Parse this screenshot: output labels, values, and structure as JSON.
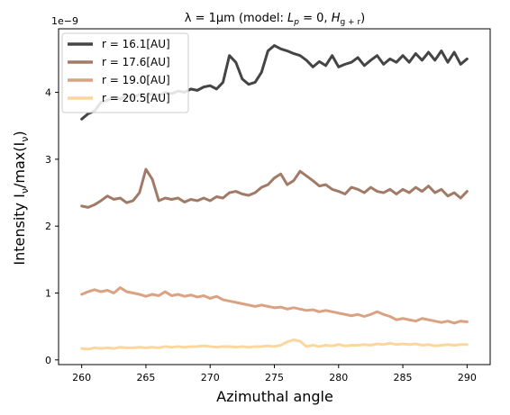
{
  "chart_data": {
    "type": "line",
    "title": "λ = 1μm (model: L_p = 0, H_g+r)",
    "title_parts": {
      "main": "λ = 1μm (model: ",
      "lp": "L",
      "lp_sub": "p",
      "lp_rest": " = 0, ",
      "h": "H",
      "h_sub": "g + r",
      "close": ")"
    },
    "xlabel": "Azimuthal angle",
    "ylabel_parts": {
      "a": "Intensity I",
      "a_sub": "ν",
      "b": "/max(I",
      "b_sub": "ν",
      "c": ")"
    },
    "offset_text": "1e−9",
    "xlim": [
      258.2,
      291.8
    ],
    "ylim": [
      -0.07,
      4.95
    ],
    "y_scale": 1e-09,
    "x_ticks": [
      260,
      265,
      270,
      275,
      280,
      285,
      290
    ],
    "y_ticks": [
      0,
      1,
      2,
      3,
      4
    ],
    "legend_position": "top-left",
    "series": [
      {
        "name": "r = 16.1[AU]",
        "color": "#454545",
        "x": [
          260.0,
          260.5,
          261.0,
          261.5,
          262.0,
          262.5,
          263.0,
          263.5,
          264.0,
          264.5,
          265.0,
          265.5,
          266.0,
          266.5,
          267.0,
          267.5,
          268.0,
          268.5,
          269.0,
          269.5,
          270.0,
          270.5,
          271.0,
          271.5,
          272.0,
          272.5,
          273.0,
          273.5,
          274.0,
          274.5,
          275.0,
          275.5,
          276.0,
          276.5,
          277.0,
          277.5,
          278.0,
          278.5,
          279.0,
          279.5,
          280.0,
          280.5,
          281.0,
          281.5,
          282.0,
          282.5,
          283.0,
          283.5,
          284.0,
          284.5,
          285.0,
          285.5,
          286.0,
          286.5,
          287.0,
          287.5,
          288.0,
          288.5,
          289.0,
          289.5,
          290.0
        ],
        "values": [
          3.6,
          3.68,
          3.72,
          3.85,
          3.88,
          3.93,
          3.9,
          3.95,
          3.92,
          3.97,
          3.93,
          3.98,
          3.95,
          4.0,
          3.98,
          4.02,
          4.0,
          4.05,
          4.03,
          4.08,
          4.1,
          4.05,
          4.15,
          4.55,
          4.45,
          4.2,
          4.12,
          4.15,
          4.3,
          4.62,
          4.7,
          4.65,
          4.62,
          4.58,
          4.55,
          4.48,
          4.38,
          4.46,
          4.4,
          4.55,
          4.38,
          4.42,
          4.45,
          4.52,
          4.4,
          4.48,
          4.55,
          4.42,
          4.5,
          4.45,
          4.55,
          4.45,
          4.58,
          4.48,
          4.6,
          4.48,
          4.62,
          4.45,
          4.6,
          4.42,
          4.5
        ]
      },
      {
        "name": "r = 17.6[AU]",
        "color": "#a17b68",
        "x": [
          260.0,
          260.5,
          261.0,
          261.5,
          262.0,
          262.5,
          263.0,
          263.5,
          264.0,
          264.5,
          265.0,
          265.5,
          266.0,
          266.5,
          267.0,
          267.5,
          268.0,
          268.5,
          269.0,
          269.5,
          270.0,
          270.5,
          271.0,
          271.5,
          272.0,
          272.5,
          273.0,
          273.5,
          274.0,
          274.5,
          275.0,
          275.5,
          276.0,
          276.5,
          277.0,
          277.5,
          278.0,
          278.5,
          279.0,
          279.5,
          280.0,
          280.5,
          281.0,
          281.5,
          282.0,
          282.5,
          283.0,
          283.5,
          284.0,
          284.5,
          285.0,
          285.5,
          286.0,
          286.5,
          287.0,
          287.5,
          288.0,
          288.5,
          289.0,
          289.5,
          290.0
        ],
        "values": [
          2.3,
          2.28,
          2.32,
          2.38,
          2.45,
          2.4,
          2.42,
          2.35,
          2.38,
          2.5,
          2.85,
          2.7,
          2.38,
          2.42,
          2.4,
          2.42,
          2.36,
          2.4,
          2.38,
          2.42,
          2.38,
          2.44,
          2.42,
          2.5,
          2.52,
          2.48,
          2.46,
          2.5,
          2.58,
          2.62,
          2.72,
          2.78,
          2.62,
          2.68,
          2.82,
          2.75,
          2.68,
          2.6,
          2.62,
          2.55,
          2.52,
          2.48,
          2.58,
          2.55,
          2.5,
          2.58,
          2.52,
          2.5,
          2.55,
          2.48,
          2.55,
          2.5,
          2.58,
          2.52,
          2.6,
          2.5,
          2.55,
          2.45,
          2.5,
          2.42,
          2.52
        ]
      },
      {
        "name": "r = 19.0[AU]",
        "color": "#daa283",
        "x": [
          260.0,
          260.5,
          261.0,
          261.5,
          262.0,
          262.5,
          263.0,
          263.5,
          264.0,
          264.5,
          265.0,
          265.5,
          266.0,
          266.5,
          267.0,
          267.5,
          268.0,
          268.5,
          269.0,
          269.5,
          270.0,
          270.5,
          271.0,
          271.5,
          272.0,
          272.5,
          273.0,
          273.5,
          274.0,
          274.5,
          275.0,
          275.5,
          276.0,
          276.5,
          277.0,
          277.5,
          278.0,
          278.5,
          279.0,
          279.5,
          280.0,
          280.5,
          281.0,
          281.5,
          282.0,
          282.5,
          283.0,
          283.5,
          284.0,
          284.5,
          285.0,
          285.5,
          286.0,
          286.5,
          287.0,
          287.5,
          288.0,
          288.5,
          289.0,
          289.5,
          290.0
        ],
        "values": [
          0.98,
          1.02,
          1.05,
          1.02,
          1.04,
          1.0,
          1.08,
          1.02,
          1.0,
          0.98,
          0.95,
          0.98,
          0.96,
          1.02,
          0.96,
          0.98,
          0.95,
          0.97,
          0.94,
          0.96,
          0.92,
          0.95,
          0.9,
          0.88,
          0.86,
          0.84,
          0.82,
          0.8,
          0.82,
          0.8,
          0.78,
          0.79,
          0.76,
          0.78,
          0.76,
          0.74,
          0.75,
          0.72,
          0.74,
          0.72,
          0.7,
          0.68,
          0.66,
          0.68,
          0.65,
          0.68,
          0.72,
          0.68,
          0.65,
          0.6,
          0.62,
          0.6,
          0.58,
          0.62,
          0.6,
          0.58,
          0.56,
          0.58,
          0.55,
          0.58,
          0.57
        ]
      },
      {
        "name": "r = 20.5[AU]",
        "color": "#fbd79e",
        "x": [
          260.0,
          260.5,
          261.0,
          261.5,
          262.0,
          262.5,
          263.0,
          263.5,
          264.0,
          264.5,
          265.0,
          265.5,
          266.0,
          266.5,
          267.0,
          267.5,
          268.0,
          268.5,
          269.0,
          269.5,
          270.0,
          270.5,
          271.0,
          271.5,
          272.0,
          272.5,
          273.0,
          273.5,
          274.0,
          274.5,
          275.0,
          275.5,
          276.0,
          276.5,
          277.0,
          277.5,
          278.0,
          278.5,
          279.0,
          279.5,
          280.0,
          280.5,
          281.0,
          281.5,
          282.0,
          282.5,
          283.0,
          283.5,
          284.0,
          284.5,
          285.0,
          285.5,
          286.0,
          286.5,
          287.0,
          287.5,
          288.0,
          288.5,
          289.0,
          289.5,
          290.0
        ],
        "values": [
          0.17,
          0.16,
          0.18,
          0.17,
          0.18,
          0.17,
          0.19,
          0.18,
          0.18,
          0.19,
          0.18,
          0.19,
          0.18,
          0.2,
          0.19,
          0.2,
          0.19,
          0.2,
          0.2,
          0.21,
          0.2,
          0.19,
          0.2,
          0.2,
          0.19,
          0.2,
          0.19,
          0.2,
          0.2,
          0.21,
          0.2,
          0.22,
          0.27,
          0.3,
          0.28,
          0.2,
          0.22,
          0.2,
          0.22,
          0.21,
          0.23,
          0.21,
          0.22,
          0.22,
          0.23,
          0.22,
          0.24,
          0.23,
          0.25,
          0.23,
          0.24,
          0.23,
          0.24,
          0.22,
          0.23,
          0.21,
          0.22,
          0.23,
          0.22,
          0.23,
          0.23
        ]
      }
    ]
  }
}
